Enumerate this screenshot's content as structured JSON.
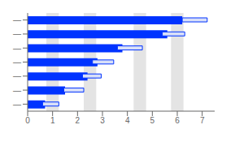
{
  "chart_data": {
    "type": "bar",
    "orientation": "horizontal",
    "categories": [
      "—",
      "—",
      "—",
      "—",
      "—",
      "—",
      "—"
    ],
    "series": [
      {
        "color": "#0033ff",
        "values": [
          6.2,
          5.6,
          3.8,
          2.8,
          2.4,
          1.5,
          0.7
        ]
      },
      {
        "color": "#d8dff8",
        "starts": [
          6.2,
          5.4,
          3.6,
          2.6,
          2.2,
          1.45,
          0.6
        ],
        "values": [
          1.0,
          0.9,
          1.0,
          0.85,
          0.75,
          0.8,
          0.65
        ]
      }
    ],
    "shaded": {
      "color": "#d8d8d8",
      "ranges": [
        [
          0.75,
          1.25
        ],
        [
          2.25,
          2.75
        ],
        [
          4.25,
          4.75
        ],
        [
          5.75,
          6.25
        ]
      ]
    },
    "xlim": [
      0,
      7.5
    ],
    "xticks": [
      0,
      1,
      2,
      3,
      4,
      5,
      6,
      7
    ],
    "grid": false
  }
}
